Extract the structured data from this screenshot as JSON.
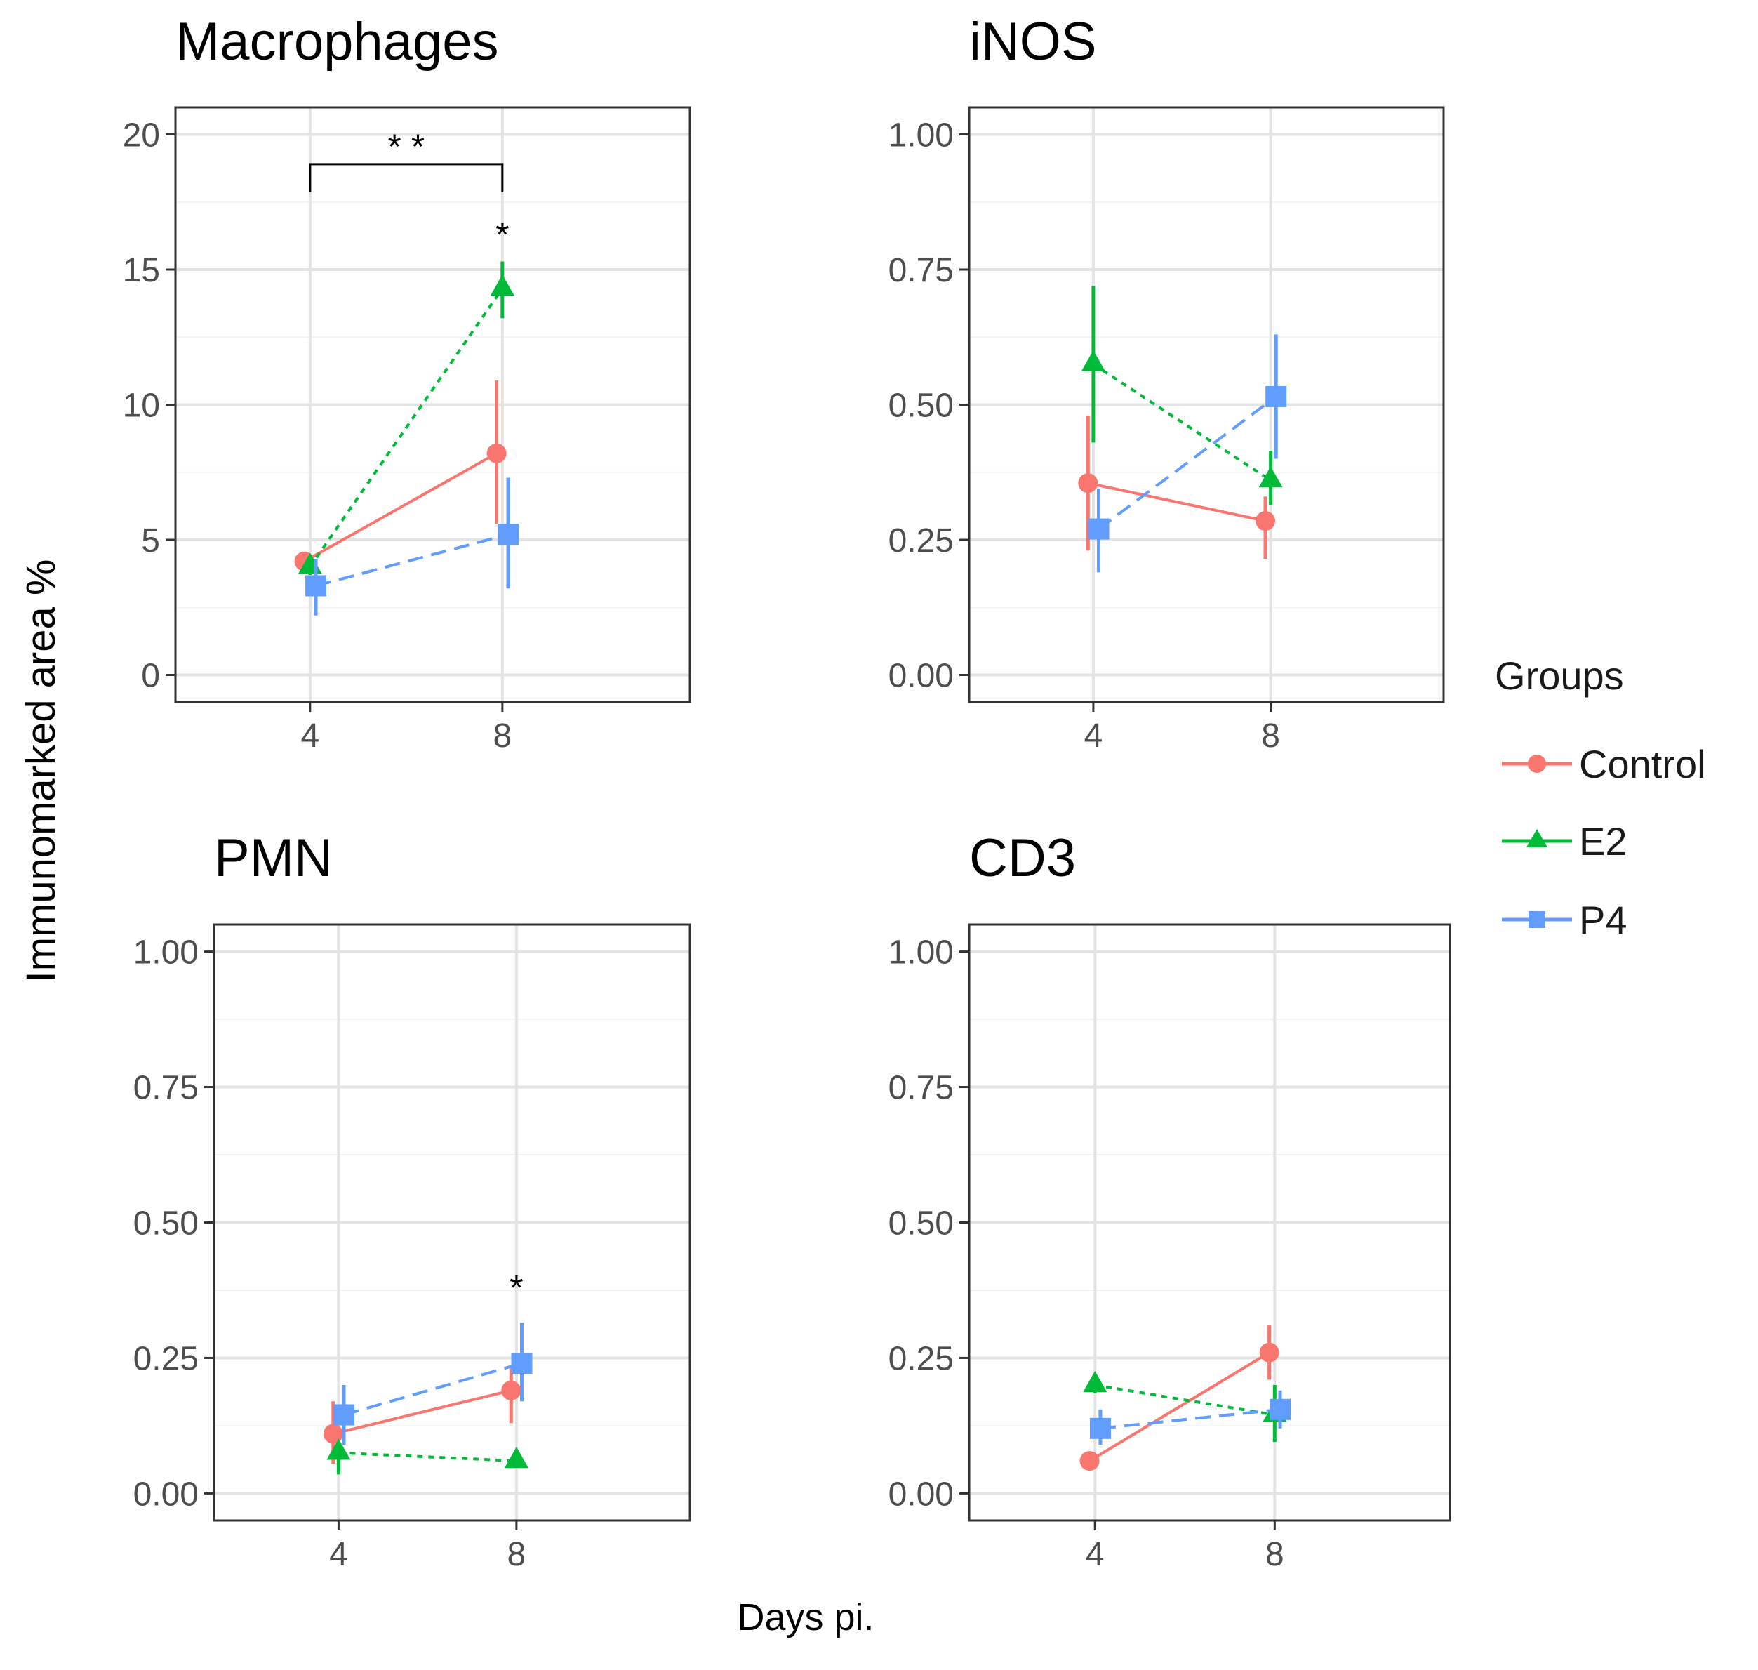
{
  "figure": {
    "ylabel": "Immunomarked area %",
    "xlabel": "Days pi.",
    "legend_title": "Groups"
  },
  "colors": {
    "Control": "#F8766D",
    "E2": "#00BA38",
    "P4": "#619CFF"
  },
  "chart_data": [
    {
      "type": "line",
      "title": "Macrophages",
      "x": [
        4,
        8
      ],
      "xticks": [
        "4",
        "8"
      ],
      "ylim": [
        -1,
        21
      ],
      "yticks": [
        "0",
        "5",
        "10",
        "15",
        "20"
      ],
      "ytick_values": [
        0,
        5,
        10,
        15,
        20
      ],
      "series": [
        {
          "name": "Control",
          "values": [
            4.2,
            8.2
          ],
          "err_low": [
            3.9,
            5.6
          ],
          "err_high": [
            4.5,
            10.9
          ]
        },
        {
          "name": "E2",
          "values": [
            4.0,
            14.3
          ],
          "err_low": [
            3.7,
            13.2
          ],
          "err_high": [
            4.3,
            15.3
          ]
        },
        {
          "name": "P4",
          "values": [
            3.3,
            5.2
          ],
          "err_low": [
            2.2,
            3.2
          ],
          "err_high": [
            4.3,
            7.3
          ]
        }
      ],
      "annotations": [
        {
          "text": "* *",
          "type": "bracket",
          "x_from": 4,
          "x_to": 8,
          "y": 18.9
        },
        {
          "text": "*",
          "type": "mark",
          "x": 8,
          "y": 16.5
        }
      ]
    },
    {
      "type": "line",
      "title": "iNOS",
      "x": [
        4,
        8
      ],
      "xticks": [
        "4",
        "8"
      ],
      "ylim": [
        -0.05,
        1.05
      ],
      "yticks": [
        "0.00",
        "0.25",
        "0.50",
        "0.75",
        "1.00"
      ],
      "ytick_values": [
        0,
        0.25,
        0.5,
        0.75,
        1.0
      ],
      "series": [
        {
          "name": "Control",
          "values": [
            0.355,
            0.285
          ],
          "err_low": [
            0.23,
            0.215
          ],
          "err_high": [
            0.48,
            0.33
          ]
        },
        {
          "name": "E2",
          "values": [
            0.575,
            0.36
          ],
          "err_low": [
            0.43,
            0.315
          ],
          "err_high": [
            0.72,
            0.415
          ]
        },
        {
          "name": "P4",
          "values": [
            0.27,
            0.515
          ],
          "err_low": [
            0.19,
            0.4
          ],
          "err_high": [
            0.345,
            0.63
          ]
        }
      ],
      "annotations": []
    },
    {
      "type": "line",
      "title": "PMN",
      "x": [
        4,
        8
      ],
      "xticks": [
        "4",
        "8"
      ],
      "ylim": [
        -0.05,
        1.05
      ],
      "yticks": [
        "0.00",
        "0.25",
        "0.50",
        "0.75",
        "1.00"
      ],
      "ytick_values": [
        0,
        0.25,
        0.5,
        0.75,
        1.0
      ],
      "series": [
        {
          "name": "Control",
          "values": [
            0.11,
            0.19
          ],
          "err_low": [
            0.055,
            0.13
          ],
          "err_high": [
            0.17,
            0.235
          ]
        },
        {
          "name": "E2",
          "values": [
            0.075,
            0.06
          ],
          "err_low": [
            0.035,
            0.05
          ],
          "err_high": [
            0.095,
            0.07
          ]
        },
        {
          "name": "P4",
          "values": [
            0.145,
            0.24
          ],
          "err_low": [
            0.09,
            0.17
          ],
          "err_high": [
            0.2,
            0.315
          ]
        }
      ],
      "annotations": [
        {
          "text": "*",
          "type": "mark",
          "x": 8,
          "y": 0.39
        }
      ]
    },
    {
      "type": "line",
      "title": "CD3",
      "x": [
        4,
        8
      ],
      "xticks": [
        "4",
        "8"
      ],
      "ylim": [
        -0.05,
        1.05
      ],
      "yticks": [
        "0.00",
        "0.25",
        "0.50",
        "0.75",
        "1.00"
      ],
      "ytick_values": [
        0,
        0.25,
        0.5,
        0.75,
        1.0
      ],
      "series": [
        {
          "name": "Control",
          "values": [
            0.06,
            0.26
          ],
          "err_low": [
            0.05,
            0.21
          ],
          "err_high": [
            0.07,
            0.31
          ]
        },
        {
          "name": "E2",
          "values": [
            0.2,
            0.145
          ],
          "err_low": [
            0.185,
            0.095
          ],
          "err_high": [
            0.215,
            0.2
          ]
        },
        {
          "name": "P4",
          "values": [
            0.12,
            0.155
          ],
          "err_low": [
            0.09,
            0.12
          ],
          "err_high": [
            0.155,
            0.19
          ]
        }
      ],
      "annotations": []
    }
  ]
}
